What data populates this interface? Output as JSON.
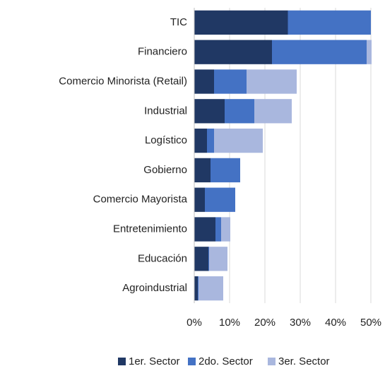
{
  "chart_data": {
    "type": "stacked_barh",
    "categories": [
      "TIC",
      "Financiero",
      "Comercio Minorista (Retail)",
      "Industrial",
      "Logístico",
      "Gobierno",
      "Comercio Mayorista",
      "Entretenimiento",
      "Educación",
      "Agroindustrial"
    ],
    "series": [
      {
        "name": "1er. Sector",
        "color": "#203864",
        "values": [
          26.5,
          22,
          5.6,
          8.6,
          3.6,
          4.6,
          3,
          6,
          4,
          1
        ]
      },
      {
        "name": "2do. Sector",
        "color": "#4472c4",
        "values": [
          23.5,
          26.8,
          9.2,
          8.4,
          2,
          8.4,
          8.6,
          1.6,
          0.2,
          0.2
        ]
      },
      {
        "name": "3er. Sector",
        "color": "#a9b7de",
        "values": [
          0,
          1.4,
          14.2,
          10.6,
          13.8,
          0,
          0,
          2.6,
          5.2,
          7
        ]
      }
    ],
    "xlim": [
      0,
      50
    ],
    "xticks": [
      {
        "value": 0,
        "label": "0%"
      },
      {
        "value": 10,
        "label": "10%"
      },
      {
        "value": 20,
        "label": "20%"
      },
      {
        "value": 30,
        "label": "30%"
      },
      {
        "value": 40,
        "label": "40%"
      },
      {
        "value": 50,
        "label": "50%"
      }
    ],
    "grid": true,
    "legend": "bottom"
  }
}
